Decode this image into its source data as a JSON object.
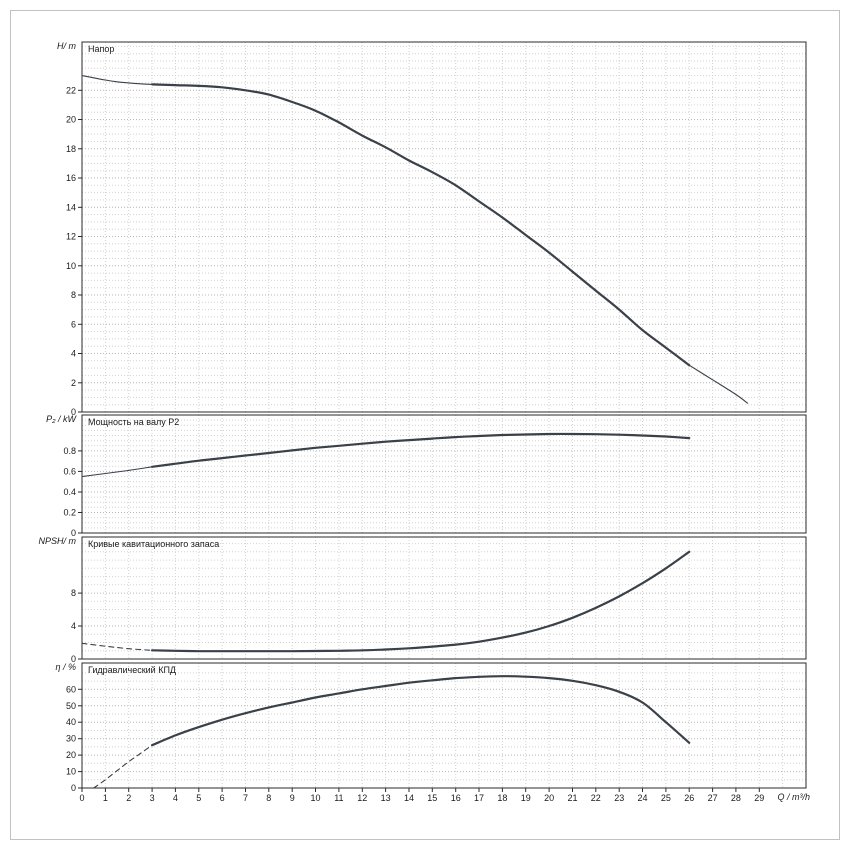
{
  "figure": {
    "curve_color": "#3a4149",
    "grid_minor_color": "#d2d2d2",
    "grid_major_color": "#b6b6b6",
    "border_color": "#2b2b2b",
    "text_color": "#1a1a1a",
    "frame_color": "#c2c2c2",
    "x_axis": {
      "label": "Q / m³/h",
      "min": 0,
      "max": 31,
      "ticks": [
        0,
        1,
        2,
        3,
        4,
        5,
        6,
        7,
        8,
        9,
        10,
        11,
        12,
        13,
        14,
        15,
        16,
        17,
        18,
        19,
        20,
        21,
        22,
        23,
        24,
        25,
        26,
        27,
        28,
        29
      ]
    }
  },
  "chart_data": [
    {
      "type": "line",
      "id": "head",
      "title": "Напор",
      "ylabel": "H/ m",
      "ylim": [
        0,
        25.3
      ],
      "yticks": [
        0,
        2,
        4,
        6,
        8,
        10,
        12,
        14,
        16,
        18,
        20,
        22
      ],
      "minor_step": 0.5,
      "series": [
        {
          "name": "head-curve",
          "segments": [
            {
              "style": "thin",
              "points": [
                [
                  0,
                  23.0
                ],
                [
                  0.5,
                  22.85
                ],
                [
                  1,
                  22.7
                ],
                [
                  1.5,
                  22.58
                ],
                [
                  2,
                  22.5
                ],
                [
                  2.5,
                  22.44
                ],
                [
                  3,
                  22.4
                ]
              ]
            },
            {
              "style": "bold",
              "points": [
                [
                  3,
                  22.4
                ],
                [
                  4,
                  22.35
                ],
                [
                  5,
                  22.3
                ],
                [
                  6,
                  22.2
                ],
                [
                  7,
                  22.0
                ],
                [
                  8,
                  21.7
                ],
                [
                  9,
                  21.2
                ],
                [
                  10,
                  20.6
                ],
                [
                  11,
                  19.8
                ],
                [
                  12,
                  18.9
                ],
                [
                  13,
                  18.1
                ],
                [
                  14,
                  17.2
                ],
                [
                  15,
                  16.4
                ],
                [
                  16,
                  15.5
                ],
                [
                  17,
                  14.4
                ],
                [
                  18,
                  13.3
                ],
                [
                  19,
                  12.1
                ],
                [
                  20,
                  10.9
                ],
                [
                  21,
                  9.6
                ],
                [
                  22,
                  8.3
                ],
                [
                  23,
                  7.0
                ],
                [
                  24,
                  5.6
                ],
                [
                  25,
                  4.4
                ],
                [
                  26,
                  3.2
                ]
              ]
            },
            {
              "style": "thin",
              "points": [
                [
                  26,
                  3.2
                ],
                [
                  27,
                  2.2
                ],
                [
                  28,
                  1.2
                ],
                [
                  28.5,
                  0.6
                ]
              ]
            }
          ]
        }
      ]
    },
    {
      "type": "line",
      "id": "power",
      "title": "Мощность на валу P2",
      "ylabel": "P₂ / kW",
      "ylim": [
        0,
        1.15
      ],
      "yticks": [
        0,
        0.2,
        0.4,
        0.6,
        0.8
      ],
      "minor_step": 0.05,
      "series": [
        {
          "name": "shaft-power-curve",
          "segments": [
            {
              "style": "thin",
              "points": [
                [
                  0,
                  0.55
                ],
                [
                  1,
                  0.58
                ],
                [
                  2,
                  0.61
                ],
                [
                  3,
                  0.645
                ]
              ]
            },
            {
              "style": "bold",
              "points": [
                [
                  3,
                  0.645
                ],
                [
                  4,
                  0.675
                ],
                [
                  5,
                  0.705
                ],
                [
                  6,
                  0.73
                ],
                [
                  7,
                  0.755
                ],
                [
                  8,
                  0.78
                ],
                [
                  9,
                  0.805
                ],
                [
                  10,
                  0.83
                ],
                [
                  11,
                  0.85
                ],
                [
                  12,
                  0.87
                ],
                [
                  13,
                  0.89
                ],
                [
                  14,
                  0.905
                ],
                [
                  15,
                  0.92
                ],
                [
                  16,
                  0.935
                ],
                [
                  17,
                  0.945
                ],
                [
                  18,
                  0.955
                ],
                [
                  19,
                  0.96
                ],
                [
                  20,
                  0.965
                ],
                [
                  21,
                  0.965
                ],
                [
                  22,
                  0.963
                ],
                [
                  23,
                  0.958
                ],
                [
                  24,
                  0.95
                ],
                [
                  25,
                  0.94
                ],
                [
                  26,
                  0.925
                ]
              ]
            }
          ]
        }
      ]
    },
    {
      "type": "line",
      "id": "npsh",
      "title": "Кривые кавитационного запаса",
      "ylabel": "NPSH/ m",
      "ylim": [
        0,
        14.8
      ],
      "yticks": [
        0,
        4,
        8
      ],
      "minor_step": 1,
      "series": [
        {
          "name": "npsh-curve",
          "segments": [
            {
              "style": "dashed",
              "points": [
                [
                  0,
                  1.9
                ],
                [
                  1,
                  1.55
                ],
                [
                  2,
                  1.25
                ],
                [
                  3,
                  1.05
                ]
              ]
            },
            {
              "style": "bold",
              "points": [
                [
                  3,
                  1.05
                ],
                [
                  4,
                  1.0
                ],
                [
                  5,
                  0.95
                ],
                [
                  6,
                  0.95
                ],
                [
                  7,
                  0.95
                ],
                [
                  8,
                  0.95
                ],
                [
                  9,
                  0.95
                ],
                [
                  10,
                  0.97
                ],
                [
                  11,
                  1.0
                ],
                [
                  12,
                  1.05
                ],
                [
                  13,
                  1.15
                ],
                [
                  14,
                  1.3
                ],
                [
                  15,
                  1.5
                ],
                [
                  16,
                  1.75
                ],
                [
                  17,
                  2.1
                ],
                [
                  18,
                  2.6
                ],
                [
                  19,
                  3.2
                ],
                [
                  20,
                  4.0
                ],
                [
                  21,
                  5.0
                ],
                [
                  22,
                  6.2
                ],
                [
                  23,
                  7.6
                ],
                [
                  24,
                  9.2
                ],
                [
                  25,
                  11.0
                ],
                [
                  26,
                  13.0
                ]
              ]
            }
          ]
        }
      ]
    },
    {
      "type": "line",
      "id": "efficiency",
      "title": "Гидравлический КПД",
      "ylabel": "η / %",
      "ylim": [
        0,
        76
      ],
      "yticks": [
        0,
        10,
        20,
        30,
        40,
        50,
        60
      ],
      "minor_step": 5,
      "series": [
        {
          "name": "efficiency-curve",
          "segments": [
            {
              "style": "dashed",
              "points": [
                [
                  0.5,
                  0
                ],
                [
                  1,
                  5
                ],
                [
                  1.5,
                  10.5
                ],
                [
                  2,
                  16
                ],
                [
                  2.5,
                  21
                ],
                [
                  3,
                  26
                ]
              ]
            },
            {
              "style": "bold",
              "points": [
                [
                  3,
                  26
                ],
                [
                  4,
                  32
                ],
                [
                  5,
                  37
                ],
                [
                  6,
                  41.5
                ],
                [
                  7,
                  45.5
                ],
                [
                  8,
                  49
                ],
                [
                  9,
                  52
                ],
                [
                  10,
                  55
                ],
                [
                  11,
                  57.5
                ],
                [
                  12,
                  60
                ],
                [
                  13,
                  62
                ],
                [
                  14,
                  64
                ],
                [
                  15,
                  65.5
                ],
                [
                  16,
                  66.8
                ],
                [
                  17,
                  67.6
                ],
                [
                  18,
                  68
                ],
                [
                  19,
                  67.7
                ],
                [
                  20,
                  66.8
                ],
                [
                  21,
                  65.2
                ],
                [
                  22,
                  62.5
                ],
                [
                  23,
                  58.5
                ],
                [
                  24,
                  52
                ],
                [
                  25,
                  40
                ],
                [
                  26,
                  27.5
                ]
              ]
            }
          ]
        }
      ]
    }
  ]
}
